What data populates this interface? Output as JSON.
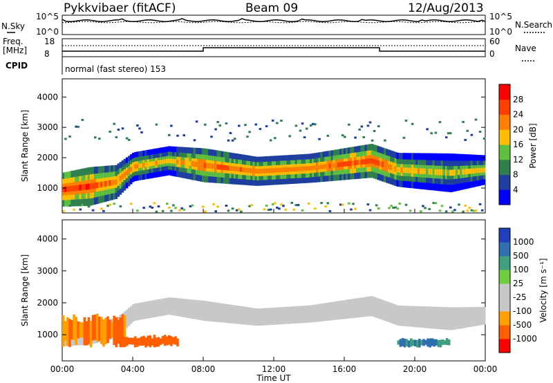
{
  "header": {
    "radar": "Pykkvibaer (fitACF)",
    "beam": "Beam 09",
    "date": "12/Aug/2013"
  },
  "noise_panel": {
    "left_label": "N.Sky",
    "left_ticks": [
      "10^5",
      "10^0"
    ],
    "right_label": "N.Search",
    "right_ticks": [
      "10^5",
      "10^0"
    ]
  },
  "freq_panel": {
    "left_label_line1": "Freq.",
    "left_label_line2": "[MHz]",
    "left_ticks": [
      "18",
      "8"
    ],
    "right_label": "Nave",
    "right_ticks": [
      "60",
      "0"
    ],
    "cpid_label": "CPID",
    "cpid_text": "normal (fast stereo) 153"
  },
  "x_axis": {
    "label": "Time UT",
    "ticks": [
      "00:00",
      "04:00",
      "08:00",
      "12:00",
      "16:00",
      "20:00",
      "00:00"
    ]
  },
  "range_axis": {
    "label": "Slant Range [km]",
    "ticks": [
      "1000",
      "2000",
      "3000",
      "4000"
    ]
  },
  "power_scale": {
    "label": "Power [dB]",
    "ticks": [
      "4",
      "8",
      "12",
      "16",
      "20",
      "24",
      "28"
    ],
    "colors": [
      "#0000ff",
      "#1f3fa0",
      "#2f7f4f",
      "#5fbf3f",
      "#ffbf00",
      "#ff7f00",
      "#ff3f00",
      "#ff0000"
    ]
  },
  "velocity_scale": {
    "label": "Velocity [m s⁻¹]",
    "ticks": [
      "1000",
      "500",
      "100",
      "25",
      "-25",
      "-100",
      "-500",
      "-1000"
    ],
    "colors": [
      "#1f3fbf",
      "#2f6fb0",
      "#3f9f7f",
      "#6fcf3f",
      "#c8c8c8",
      "#c8c8c8",
      "#ff9f00",
      "#ff5f00",
      "#ff0000"
    ]
  },
  "chart_data": {
    "type": "heatmap",
    "x_range_hours": [
      0,
      24
    ],
    "y_range_km": [
      180,
      4600
    ],
    "power_bands": [
      {
        "t": 0,
        "center_km": 950,
        "width_km": 350,
        "power_db": 28
      },
      {
        "t": 1.5,
        "center_km": 1050,
        "width_km": 400,
        "power_db": 26
      },
      {
        "t": 3,
        "center_km": 1200,
        "width_km": 350,
        "power_db": 22
      },
      {
        "t": 4,
        "center_km": 1700,
        "width_km": 300,
        "power_db": 20
      },
      {
        "t": 6,
        "center_km": 1900,
        "width_km": 300,
        "power_db": 18
      },
      {
        "t": 8,
        "center_km": 1750,
        "width_km": 350,
        "power_db": 24
      },
      {
        "t": 11,
        "center_km": 1550,
        "width_km": 300,
        "power_db": 22
      },
      {
        "t": 14,
        "center_km": 1650,
        "width_km": 300,
        "power_db": 22
      },
      {
        "t": 17.5,
        "center_km": 1900,
        "width_km": 350,
        "power_db": 26
      },
      {
        "t": 19,
        "center_km": 1600,
        "width_km": 350,
        "power_db": 20
      },
      {
        "t": 22,
        "center_km": 1500,
        "width_km": 400,
        "power_db": 16
      },
      {
        "t": 24,
        "center_km": 1600,
        "width_km": 300,
        "power_db": 18
      }
    ],
    "velocity_regions": [
      {
        "t_start": 0,
        "t_end": 3.5,
        "range_km": [
          600,
          1700
        ],
        "velocity": -300
      },
      {
        "t_start": 3,
        "t_end": 6.5,
        "range_km": [
          600,
          1000
        ],
        "velocity": -400
      },
      {
        "t_start": 0,
        "t_end": 24,
        "range_km": [
          1300,
          2400
        ],
        "velocity": 0
      },
      {
        "t_start": 19,
        "t_end": 22,
        "range_km": [
          600,
          900
        ],
        "velocity": 300
      }
    ]
  }
}
